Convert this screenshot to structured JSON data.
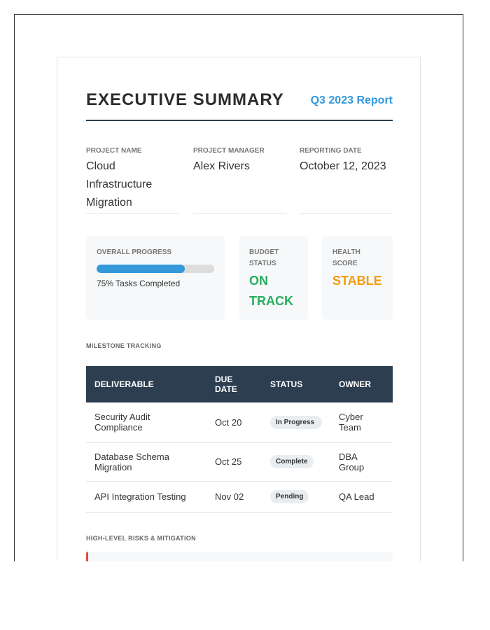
{
  "header": {
    "title": "EXECUTIVE SUMMARY",
    "subtitle": "Q3 2023 Report"
  },
  "fields": [
    {
      "label": "PROJECT NAME",
      "value": "Cloud Infrastructure Migration"
    },
    {
      "label": "PROJECT MANAGER",
      "value": "Alex Rivers"
    },
    {
      "label": "REPORTING DATE",
      "value": "October 12, 2023"
    }
  ],
  "progress": {
    "label": "OVERALL PROGRESS",
    "percent": 75,
    "text": "75% Tasks Completed",
    "color": "#3498db"
  },
  "budget": {
    "label": "BUDGET STATUS",
    "value": "ON TRACK",
    "color": "#27ae60"
  },
  "health": {
    "label": "HEALTH SCORE",
    "value": "STABLE",
    "color": "#f39c12"
  },
  "milestones": {
    "title": "MILESTONE TRACKING",
    "columns": [
      "DELIVERABLE",
      "DUE DATE",
      "STATUS",
      "OWNER"
    ],
    "rows": [
      [
        "Security Audit Compliance",
        "Oct 20",
        "In Progress",
        "Cyber Team"
      ],
      [
        "Database Schema Migration",
        "Oct 25",
        "Complete",
        "DBA Group"
      ],
      [
        "API Integration Testing",
        "Nov 02",
        "Pending",
        "QA Lead"
      ]
    ]
  },
  "risks": {
    "title": "HIGH-LEVEL RISKS & MITIGATION",
    "accent": "#e74c3c"
  }
}
